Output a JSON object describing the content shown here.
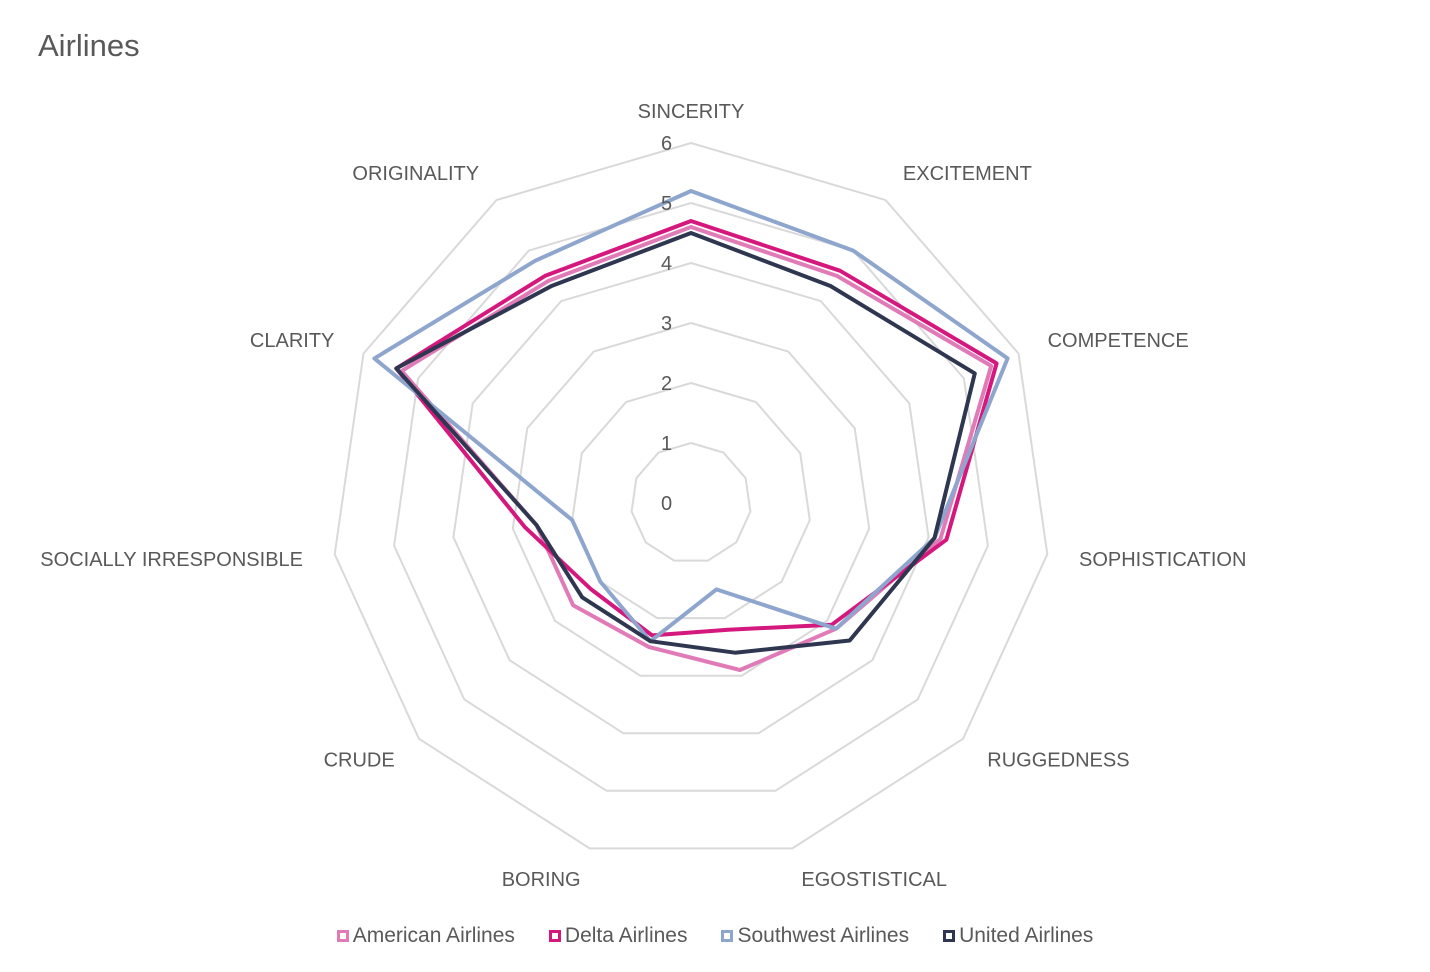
{
  "chart_data": {
    "type": "radar",
    "title": "Airlines",
    "axes": [
      "SINCERITY",
      "EXCITEMENT",
      "COMPETENCE",
      "SOPHISTICATION",
      "RUGGEDNESS",
      "EGOSTISTICAL",
      "BORING",
      "CRUDE",
      "SOCIALLY IRRESPONSIBLE",
      "CLARITY",
      "ORIGINALITY"
    ],
    "ticks": [
      0,
      1,
      2,
      3,
      4,
      5,
      6
    ],
    "rmax": 6,
    "grid": true,
    "legend_position": "bottom",
    "series": [
      {
        "name": "American Airlines",
        "color": "#E07BB8",
        "values": [
          4.6,
          4.5,
          5.5,
          4.2,
          3.2,
          2.9,
          2.5,
          2.6,
          2.6,
          5.3,
          4.4
        ]
      },
      {
        "name": "Delta Airlines",
        "color": "#D4187D",
        "values": [
          4.7,
          4.6,
          5.6,
          4.3,
          3.1,
          2.2,
          2.3,
          2.2,
          2.8,
          5.4,
          4.5
        ]
      },
      {
        "name": "Southwest Airlines",
        "color": "#8EA6CE",
        "values": [
          5.2,
          5.0,
          5.8,
          4.1,
          3.2,
          1.5,
          2.4,
          2.0,
          2.0,
          5.8,
          4.8
        ]
      },
      {
        "name": "United Airlines",
        "color": "#2E3650",
        "values": [
          4.5,
          4.3,
          5.2,
          4.1,
          3.5,
          2.6,
          2.4,
          2.4,
          2.6,
          5.4,
          4.3
        ]
      }
    ]
  }
}
